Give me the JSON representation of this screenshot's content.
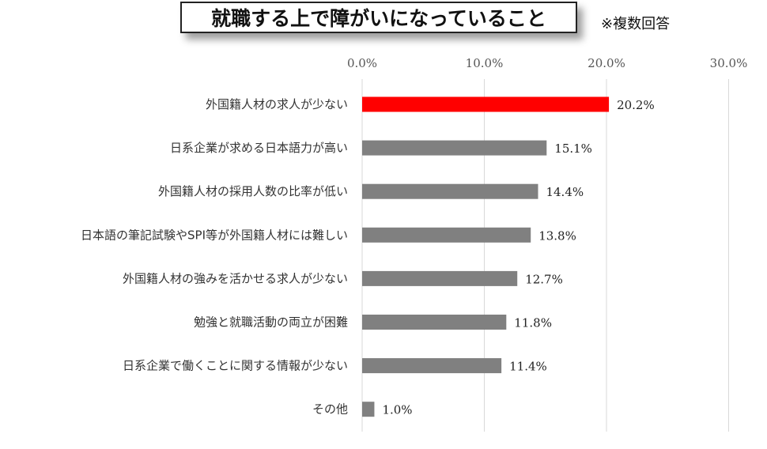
{
  "title": "就職する上で障がいになっていること",
  "note": "※複数回答",
  "colors": {
    "highlight": "#ff0000",
    "bar": "#808080",
    "grid": "#d9d9d9"
  },
  "chart_data": {
    "type": "bar",
    "orientation": "horizontal",
    "title": "就職する上で障がいになっていること",
    "categories": [
      "外国籍人材の求人が少ない",
      "日系企業が求める日本語力が高い",
      "外国籍人材の採用人数の比率が低い",
      "日本語の筆記試験やSPI等が外国籍人材には難しい",
      "外国籍人材の強みを活かせる求人が少ない",
      "勉強と就職活動の両立が困難",
      "日系企業で働くことに関する情報が少ない",
      "その他"
    ],
    "values": [
      20.2,
      15.1,
      14.4,
      13.8,
      12.7,
      11.8,
      11.4,
      1.0
    ],
    "value_labels": [
      "20.2%",
      "15.1%",
      "14.4%",
      "13.8%",
      "12.7%",
      "11.8%",
      "11.4%",
      "1.0%"
    ],
    "xlim": [
      0,
      30
    ],
    "ticks": [
      0,
      10,
      20,
      30
    ],
    "tick_labels": [
      "0.0%",
      "10.0%",
      "20.0%",
      "30.0%"
    ],
    "axis_position": "top",
    "grid": true,
    "highlight_index": 0
  }
}
